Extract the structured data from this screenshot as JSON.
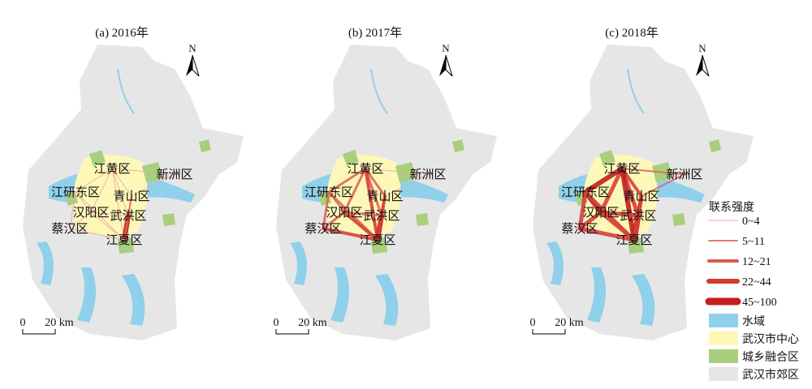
{
  "panels": [
    {
      "title": "(a) 2016年",
      "north": "N",
      "scale": {
        "zero": "0",
        "label": "20 km"
      },
      "districts": [
        "江黄区",
        "新洲区",
        "江研东区",
        "青山区",
        "汉阳区",
        "武洪区",
        "蔡汉区",
        "江夏区"
      ]
    },
    {
      "title": "(b) 2017年",
      "north": "N",
      "scale": {
        "zero": "0",
        "label": "20 km"
      },
      "districts": [
        "江黄区",
        "新洲区",
        "江研东区",
        "青山区",
        "汉阳区",
        "武洪区",
        "蔡汉区",
        "江夏区"
      ]
    },
    {
      "title": "(c) 2018年",
      "north": "N",
      "scale": {
        "zero": "0",
        "label": "20 km"
      },
      "districts": [
        "江黄区",
        "新洲区",
        "江研东区",
        "青山区",
        "汉阳区",
        "武洪区",
        "蔡汉区",
        "江夏区"
      ]
    }
  ],
  "legend": {
    "title": "联系强度",
    "strength": [
      "0~4",
      "5~11",
      "12~21",
      "22~44",
      "45~100"
    ],
    "land": [
      "水域",
      "武汉市中心",
      "城乡融合区",
      "武汉市郊区"
    ]
  }
}
